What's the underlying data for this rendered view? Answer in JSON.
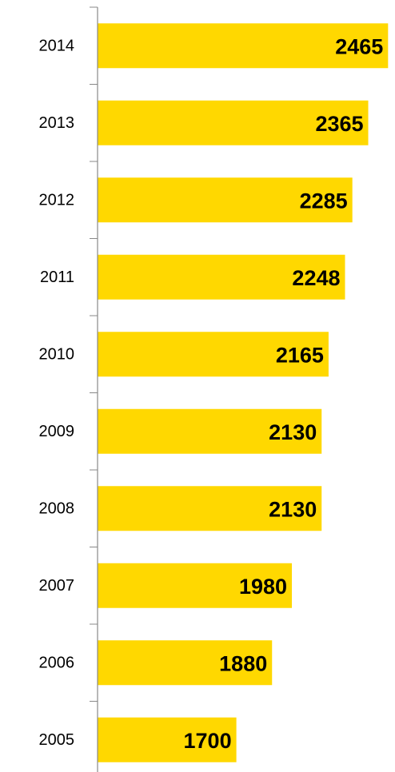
{
  "chart_data": {
    "type": "bar",
    "orientation": "horizontal",
    "categories": [
      "2014",
      "2013",
      "2012",
      "2011",
      "2010",
      "2009",
      "2008",
      "2007",
      "2006",
      "2005"
    ],
    "values": [
      2465,
      2365,
      2285,
      2248,
      2165,
      2130,
      2130,
      1980,
      1880,
      1700
    ],
    "color": "#ffd800",
    "xlim": [
      1000,
      2500
    ]
  }
}
